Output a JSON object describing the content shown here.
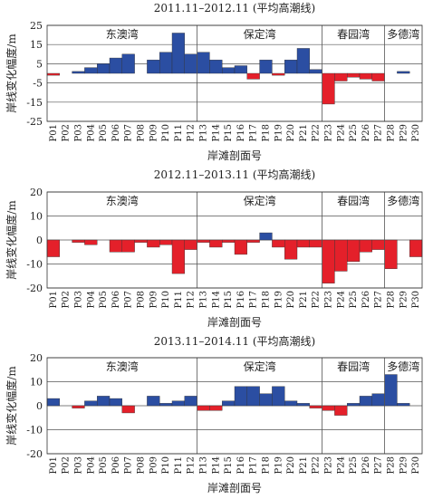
{
  "chart_data": [
    {
      "type": "bar",
      "title": "2011.11–2012.11 (平均高潮线)",
      "y_label": "岸线变化幅度/m",
      "x_label": "岸滩剖面号",
      "regions": [
        "东澳湾",
        "保定湾",
        "春园湾",
        "多德湾"
      ],
      "categories": [
        "P01",
        "P02",
        "P03",
        "P04",
        "P05",
        "P06",
        "P07",
        "P08",
        "P09",
        "P10",
        "P11",
        "P12",
        "P13",
        "P14",
        "P15",
        "P16",
        "P17",
        "P18",
        "P19",
        "P20",
        "P21",
        "P22",
        "P23",
        "P24",
        "P25",
        "P26",
        "P27",
        "P28",
        "P29",
        "P30"
      ],
      "values": [
        -1,
        0,
        1,
        3,
        5,
        8,
        10,
        0,
        7,
        11,
        21,
        10,
        11,
        7,
        3,
        4,
        -3,
        7,
        -1,
        7,
        13,
        2,
        -16,
        -4,
        -2,
        -3,
        -4,
        0,
        1,
        0
      ],
      "positive_color": "#2b4ea2",
      "negative_color": "#e4202a",
      "ylim": [
        -25,
        25
      ],
      "yticks": [
        -25,
        -15,
        -5,
        5,
        15,
        25
      ],
      "grid": true
    },
    {
      "type": "bar",
      "title": "2012.11–2013.11 (平均高潮线)",
      "y_label": "岸线变化幅度/m",
      "x_label": "岸滩剖面号",
      "regions": [
        "东澳湾",
        "保定湾",
        "春园湾",
        "多德湾"
      ],
      "categories": [
        "P01",
        "P02",
        "P03",
        "P04",
        "P05",
        "P06",
        "P07",
        "P08",
        "P09",
        "P10",
        "P11",
        "P12",
        "P13",
        "P14",
        "P15",
        "P16",
        "P17",
        "P18",
        "P19",
        "P20",
        "P21",
        "P22",
        "P23",
        "P24",
        "P25",
        "P26",
        "P27",
        "P28",
        "P29",
        "P30"
      ],
      "values": [
        -7,
        0,
        -1,
        -2,
        0,
        -5,
        -5,
        -1,
        -3,
        -2,
        -14,
        -4,
        -1,
        -3,
        -1,
        -6,
        -1,
        3,
        -3,
        -8,
        -3,
        -3,
        -18,
        -13,
        -9,
        -5,
        -4,
        -12,
        0,
        -7
      ],
      "positive_color": "#2b4ea2",
      "negative_color": "#e4202a",
      "ylim": [
        -20,
        20
      ],
      "yticks": [
        -20,
        -10,
        0,
        10,
        20
      ],
      "grid": true
    },
    {
      "type": "bar",
      "title": "2013.11–2014.11 (平均高潮线)",
      "y_label": "岸线变化幅度/m",
      "x_label": "岸滩剖面号",
      "regions": [
        "东澳湾",
        "保定湾",
        "春园湾",
        "多德湾"
      ],
      "categories": [
        "P01",
        "P02",
        "P03",
        "P04",
        "P05",
        "P06",
        "P07",
        "P08",
        "P09",
        "P10",
        "P11",
        "P12",
        "P13",
        "P14",
        "P15",
        "P16",
        "P17",
        "P18",
        "P19",
        "P20",
        "P21",
        "P22",
        "P23",
        "P24",
        "P25",
        "P26",
        "P27",
        "P28",
        "P29",
        "P30"
      ],
      "values": [
        3,
        0,
        -1,
        2,
        4,
        3,
        -3,
        0,
        4,
        1,
        2,
        4,
        -2,
        -2,
        2,
        8,
        8,
        5,
        8,
        2,
        1,
        -1,
        -2,
        -4,
        1,
        4,
        5,
        13,
        1,
        0
      ],
      "positive_color": "#2b4ea2",
      "negative_color": "#e4202a",
      "ylim": [
        -20,
        20
      ],
      "yticks": [
        -20,
        -10,
        0,
        10,
        20
      ],
      "grid": true
    }
  ]
}
